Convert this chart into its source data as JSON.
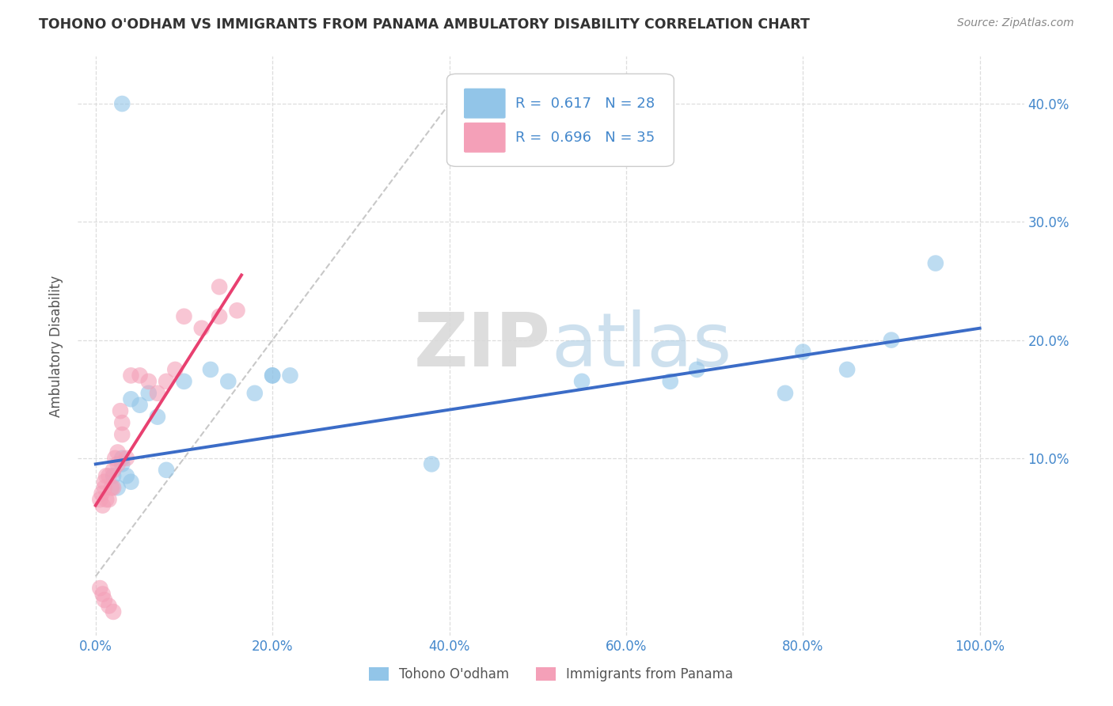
{
  "title": "TOHONO O'ODHAM VS IMMIGRANTS FROM PANAMA AMBULATORY DISABILITY CORRELATION CHART",
  "source": "Source: ZipAtlas.com",
  "ylabel": "Ambulatory Disability",
  "xlabel": "",
  "xlim": [
    -0.02,
    1.05
  ],
  "ylim": [
    -0.05,
    0.44
  ],
  "xticks": [
    0.0,
    0.2,
    0.4,
    0.6,
    0.8,
    1.0
  ],
  "yticks": [
    0.1,
    0.2,
    0.3,
    0.4
  ],
  "blue_r": "0.617",
  "blue_n": "28",
  "pink_r": "0.696",
  "pink_n": "35",
  "legend_label_blue": "Tohono O'odham",
  "legend_label_pink": "Immigrants from Panama",
  "blue_scatter_x": [
    0.02,
    0.025,
    0.03,
    0.035,
    0.04,
    0.05,
    0.06,
    0.07,
    0.08,
    0.1,
    0.13,
    0.15,
    0.18,
    0.2,
    0.22,
    0.38,
    0.55,
    0.65,
    0.68,
    0.78,
    0.8,
    0.85,
    0.9,
    0.95,
    0.03,
    0.04,
    0.2,
    0.03
  ],
  "blue_scatter_y": [
    0.085,
    0.075,
    0.1,
    0.085,
    0.08,
    0.145,
    0.155,
    0.135,
    0.09,
    0.165,
    0.175,
    0.165,
    0.155,
    0.17,
    0.17,
    0.095,
    0.165,
    0.165,
    0.175,
    0.155,
    0.19,
    0.175,
    0.2,
    0.265,
    0.095,
    0.15,
    0.17,
    0.4
  ],
  "pink_scatter_x": [
    0.005,
    0.007,
    0.008,
    0.01,
    0.01,
    0.012,
    0.012,
    0.015,
    0.015,
    0.018,
    0.02,
    0.02,
    0.022,
    0.025,
    0.025,
    0.028,
    0.03,
    0.03,
    0.035,
    0.04,
    0.05,
    0.06,
    0.07,
    0.08,
    0.09,
    0.1,
    0.12,
    0.14,
    0.14,
    0.16,
    0.005,
    0.008,
    0.01,
    0.015,
    0.02
  ],
  "pink_scatter_y": [
    0.065,
    0.07,
    0.06,
    0.075,
    0.08,
    0.065,
    0.085,
    0.085,
    0.065,
    0.075,
    0.075,
    0.09,
    0.1,
    0.095,
    0.105,
    0.14,
    0.13,
    0.12,
    0.1,
    0.17,
    0.17,
    0.165,
    0.155,
    0.165,
    0.175,
    0.22,
    0.21,
    0.22,
    0.245,
    0.225,
    -0.01,
    -0.015,
    -0.02,
    -0.025,
    -0.03
  ],
  "blue_line_x": [
    0.0,
    1.0
  ],
  "blue_line_y": [
    0.095,
    0.21
  ],
  "pink_line_x": [
    0.0,
    0.165
  ],
  "pink_line_y": [
    0.06,
    0.255
  ],
  "ref_line_x": [
    0.0,
    0.42
  ],
  "ref_line_y": [
    0.0,
    0.42
  ],
  "blue_color": "#92C5E8",
  "pink_color": "#F4A0B8",
  "blue_line_color": "#3B6CC7",
  "pink_line_color": "#E84070",
  "ref_line_color": "#C8C8C8",
  "bg_color": "#FFFFFF",
  "grid_color": "#DDDDDD",
  "title_color": "#333333",
  "source_color": "#888888",
  "legend_text_color": "#4488CC",
  "tick_color": "#4488CC"
}
